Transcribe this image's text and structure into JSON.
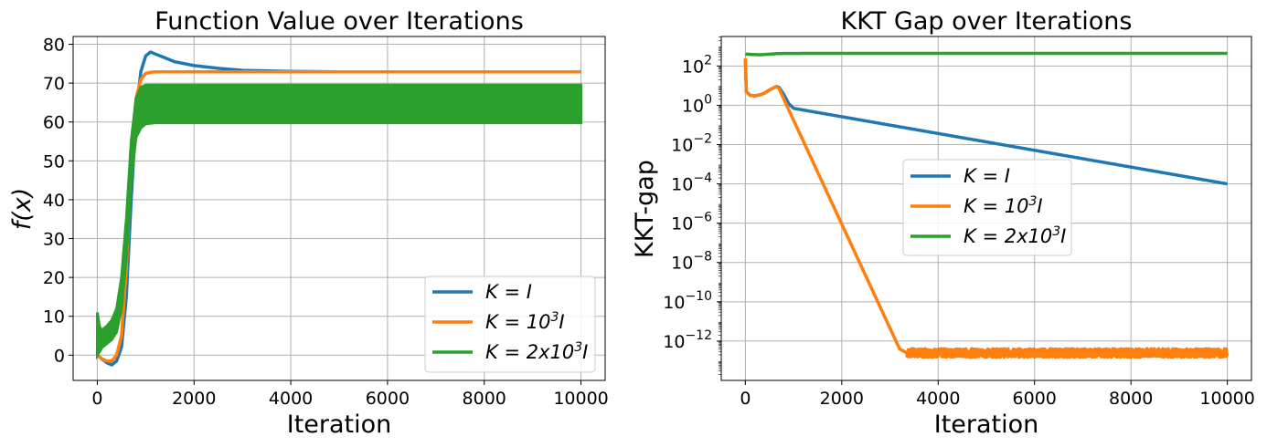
{
  "chart_data": [
    {
      "type": "line",
      "title": "Function Value over Iterations",
      "xlabel": "Iteration",
      "ylabel": "f(x)",
      "xlim": [
        -500,
        10500
      ],
      "ylim": [
        -6.5,
        82
      ],
      "xticks": [
        0,
        2000,
        4000,
        6000,
        8000,
        10000
      ],
      "xtick_labels": [
        "0",
        "2000",
        "4000",
        "6000",
        "8000",
        "10000"
      ],
      "yticks": [
        0,
        10,
        20,
        30,
        40,
        50,
        60,
        70,
        80
      ],
      "ytick_labels": [
        "0",
        "10",
        "20",
        "30",
        "40",
        "50",
        "60",
        "70",
        "80"
      ],
      "grid": true,
      "legend_position": "lower-right",
      "series": [
        {
          "name": "K = I",
          "color": "#1f77b4",
          "x": [
            0,
            100,
            200,
            300,
            400,
            500,
            600,
            700,
            800,
            900,
            1000,
            1100,
            1200,
            1400,
            1600,
            2000,
            2500,
            3000,
            4000,
            5000,
            6000,
            8000,
            10000
          ],
          "y": [
            0,
            -1,
            -2,
            -2.5,
            -1.5,
            2,
            15,
            40,
            62,
            73,
            77,
            78,
            77.5,
            76.5,
            75.5,
            74.5,
            73.8,
            73.3,
            73,
            72.9,
            72.9,
            72.9,
            72.9
          ]
        },
        {
          "name": "K = 10^3 I",
          "color": "#ff7f0e",
          "x": [
            0,
            100,
            200,
            300,
            400,
            500,
            600,
            700,
            800,
            900,
            1000,
            1100,
            1200,
            1400,
            2000,
            4000,
            6000,
            8000,
            10000
          ],
          "y": [
            0,
            -1,
            -1.5,
            -1.5,
            0,
            5,
            22,
            50,
            66,
            71,
            72.5,
            72.8,
            72.9,
            72.9,
            72.9,
            72.9,
            72.9,
            72.9,
            72.9
          ]
        },
        {
          "name": "K = 2x10^3 I",
          "color": "#2ca02c",
          "band": true,
          "x": [
            0,
            50,
            100,
            200,
            300,
            400,
            500,
            600,
            700,
            800,
            900,
            1000,
            1200,
            1500,
            10000
          ],
          "upper": [
            11,
            7,
            6.5,
            7.5,
            9,
            12,
            20,
            35,
            55,
            66,
            69,
            69.5,
            69.5,
            69.5,
            69.5
          ],
          "lower": [
            0,
            1,
            2,
            3,
            4,
            6,
            12,
            25,
            45,
            56,
            58.5,
            59.5,
            59.8,
            59.8,
            59.8
          ]
        }
      ]
    },
    {
      "type": "line",
      "title": "KKT Gap over Iterations",
      "xlabel": "Iteration",
      "ylabel": "KKT-gap",
      "yscale": "log",
      "xlim": [
        -500,
        10500
      ],
      "ylim_exp": [
        -14,
        3.5
      ],
      "xticks": [
        0,
        2000,
        4000,
        6000,
        8000,
        10000
      ],
      "xtick_labels": [
        "0",
        "2000",
        "4000",
        "6000",
        "8000",
        "10000"
      ],
      "yticks": [
        {
          "base": "10",
          "exp": "2",
          "value_exp": 2
        },
        {
          "base": "10",
          "exp": "0",
          "value_exp": 0
        },
        {
          "base": "10",
          "exp": "−2",
          "value_exp": -2
        },
        {
          "base": "10",
          "exp": "−4",
          "value_exp": -4
        },
        {
          "base": "10",
          "exp": "−6",
          "value_exp": -6
        },
        {
          "base": "10",
          "exp": "−8",
          "value_exp": -8
        },
        {
          "base": "10",
          "exp": "−10",
          "value_exp": -10
        },
        {
          "base": "10",
          "exp": "−12",
          "value_exp": -12
        }
      ],
      "grid": true,
      "legend_position": "center-right",
      "series": [
        {
          "name": "K = I",
          "color": "#1f77b4",
          "x": [
            0,
            20,
            100,
            200,
            300,
            400,
            500,
            600,
            650,
            700,
            800,
            900,
            1000,
            10000
          ],
          "y": [
            200,
            5,
            3.2,
            3.0,
            3.4,
            4.2,
            6.0,
            8.0,
            9.0,
            8.0,
            3.5,
            1.2,
            0.7,
            0.0001
          ],
          "fluct": false
        },
        {
          "name": "K = 10^3 I",
          "color": "#ff7f0e",
          "x": [
            0,
            20,
            100,
            200,
            300,
            400,
            500,
            600,
            650,
            700,
            800,
            3200,
            3350,
            10000
          ],
          "y": [
            250,
            5,
            3.2,
            3.0,
            3.4,
            4.2,
            6.0,
            8.0,
            8.5,
            7.0,
            2.0,
            4e-13,
            2.5e-13,
            2.5e-13
          ],
          "fluct_from": 3350,
          "fluct_exp": 0.22
        },
        {
          "name": "K = 2x10^3 I",
          "color": "#2ca02c",
          "x": [
            0,
            300,
            700,
            1500,
            10000
          ],
          "y": [
            400,
            370,
            430,
            440,
            440
          ]
        }
      ]
    }
  ],
  "legend": {
    "left": [
      {
        "prefix": "K = ",
        "main": "I",
        "sup": ""
      },
      {
        "prefix": "K = ",
        "main": "10",
        "sup": "3",
        "after": "I"
      },
      {
        "prefix": "K = ",
        "main": "2x10",
        "sup": "3",
        "after": "I"
      }
    ],
    "right": [
      {
        "prefix": "K = ",
        "main": "I",
        "sup": ""
      },
      {
        "prefix": "K = ",
        "main": "10",
        "sup": "3",
        "after": "I"
      },
      {
        "prefix": "K = ",
        "main": "2x10",
        "sup": "3",
        "after": "I"
      }
    ]
  }
}
